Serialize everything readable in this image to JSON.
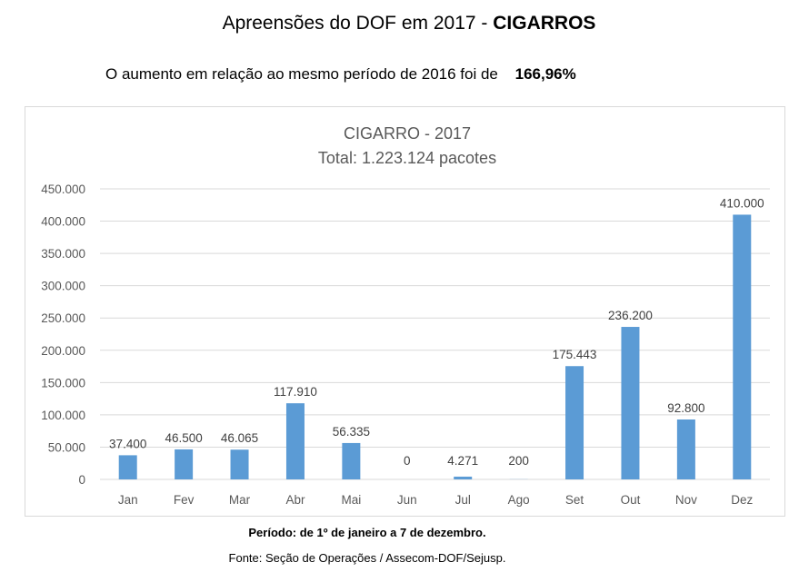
{
  "header": {
    "title_main": "Apreensões do DOF em 2017 -",
    "title_bold": "CIGARROS",
    "subtitle_text": "O aumento em relação ao mesmo período de 2016 foi de",
    "subtitle_value": "166,96%"
  },
  "footer": {
    "period": "Período: de 1º de janeiro a 7 de dezembro.",
    "source": "Fonte: Seção de Operações / Assecom-DOF/Sejusp."
  },
  "colors": {
    "bar": "#5b9bd5",
    "grid": "#d9d9d9",
    "axis_text": "#595959",
    "label_text": "#404040",
    "title_text": "#595959"
  },
  "chart_data": {
    "type": "bar",
    "title": "CIGARRO - 2017",
    "subtitle": "Total: 1.223.124 pacotes",
    "xlabel": "",
    "ylabel": "",
    "categories": [
      "Jan",
      "Fev",
      "Mar",
      "Abr",
      "Mai",
      "Jun",
      "Jul",
      "Ago",
      "Set",
      "Out",
      "Nov",
      "Dez"
    ],
    "values": [
      37400,
      46500,
      46065,
      117910,
      56335,
      0,
      4271,
      200,
      175443,
      236200,
      92800,
      410000
    ],
    "value_labels": [
      "37.400",
      "46.500",
      "46.065",
      "117.910",
      "56.335",
      "0",
      "4.271",
      "200",
      "175.443",
      "236.200",
      "92.800",
      "410.000"
    ],
    "ylim": [
      0,
      450000
    ],
    "yticks": [
      0,
      50000,
      100000,
      150000,
      200000,
      250000,
      300000,
      350000,
      400000,
      450000
    ],
    "ytick_labels": [
      "0",
      "50.000",
      "100.000",
      "150.000",
      "200.000",
      "250.000",
      "300.000",
      "350.000",
      "400.000",
      "450.000"
    ],
    "grid": true,
    "legend": "none"
  }
}
